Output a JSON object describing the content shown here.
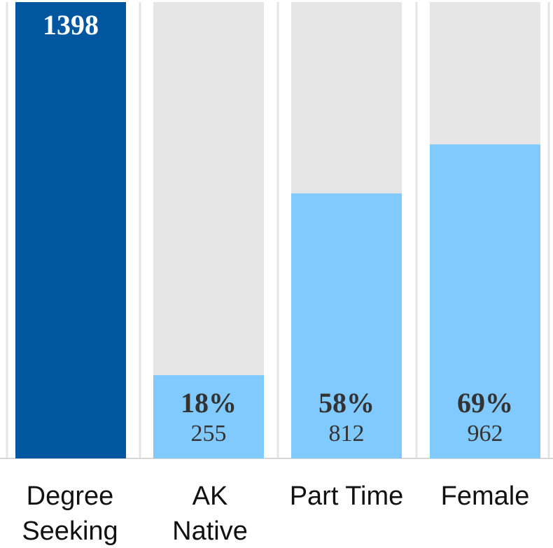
{
  "chart_data": {
    "type": "bar",
    "categories": [
      "Degree Seeking",
      "AK Native",
      "Part Time",
      "Female"
    ],
    "values": [
      1398,
      255,
      812,
      962
    ],
    "percent_labels": [
      null,
      "18%",
      "58%",
      "69%"
    ],
    "colors": [
      "#0057a0",
      "#80caff",
      "#80caff",
      "#80caff"
    ],
    "background_color": "#e6e6e6",
    "ylim": [
      0,
      1398
    ]
  }
}
